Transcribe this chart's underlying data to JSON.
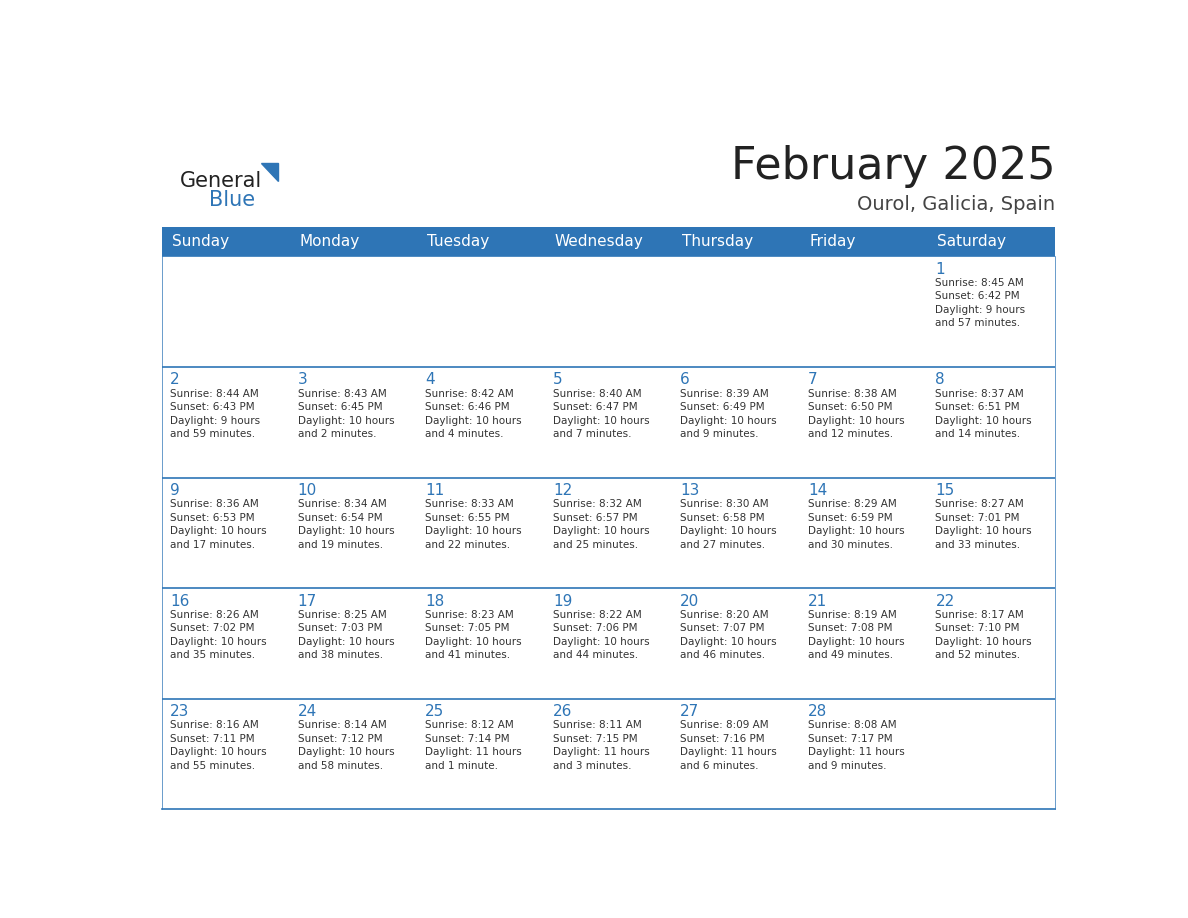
{
  "title": "February 2025",
  "subtitle": "Ourol, Galicia, Spain",
  "header_bg": "#2E75B6",
  "header_text_color": "#FFFFFF",
  "days_of_week": [
    "Sunday",
    "Monday",
    "Tuesday",
    "Wednesday",
    "Thursday",
    "Friday",
    "Saturday"
  ],
  "cell_bg": "#FFFFFF",
  "border_color": "#2E75B6",
  "text_color": "#333333",
  "num_color": "#2E75B6",
  "calendar": [
    [
      {
        "day": "",
        "lines": []
      },
      {
        "day": "",
        "lines": []
      },
      {
        "day": "",
        "lines": []
      },
      {
        "day": "",
        "lines": []
      },
      {
        "day": "",
        "lines": []
      },
      {
        "day": "",
        "lines": []
      },
      {
        "day": "1",
        "lines": [
          "Sunrise: 8:45 AM",
          "Sunset: 6:42 PM",
          "Daylight: 9 hours",
          "and 57 minutes."
        ]
      }
    ],
    [
      {
        "day": "2",
        "lines": [
          "Sunrise: 8:44 AM",
          "Sunset: 6:43 PM",
          "Daylight: 9 hours",
          "and 59 minutes."
        ]
      },
      {
        "day": "3",
        "lines": [
          "Sunrise: 8:43 AM",
          "Sunset: 6:45 PM",
          "Daylight: 10 hours",
          "and 2 minutes."
        ]
      },
      {
        "day": "4",
        "lines": [
          "Sunrise: 8:42 AM",
          "Sunset: 6:46 PM",
          "Daylight: 10 hours",
          "and 4 minutes."
        ]
      },
      {
        "day": "5",
        "lines": [
          "Sunrise: 8:40 AM",
          "Sunset: 6:47 PM",
          "Daylight: 10 hours",
          "and 7 minutes."
        ]
      },
      {
        "day": "6",
        "lines": [
          "Sunrise: 8:39 AM",
          "Sunset: 6:49 PM",
          "Daylight: 10 hours",
          "and 9 minutes."
        ]
      },
      {
        "day": "7",
        "lines": [
          "Sunrise: 8:38 AM",
          "Sunset: 6:50 PM",
          "Daylight: 10 hours",
          "and 12 minutes."
        ]
      },
      {
        "day": "8",
        "lines": [
          "Sunrise: 8:37 AM",
          "Sunset: 6:51 PM",
          "Daylight: 10 hours",
          "and 14 minutes."
        ]
      }
    ],
    [
      {
        "day": "9",
        "lines": [
          "Sunrise: 8:36 AM",
          "Sunset: 6:53 PM",
          "Daylight: 10 hours",
          "and 17 minutes."
        ]
      },
      {
        "day": "10",
        "lines": [
          "Sunrise: 8:34 AM",
          "Sunset: 6:54 PM",
          "Daylight: 10 hours",
          "and 19 minutes."
        ]
      },
      {
        "day": "11",
        "lines": [
          "Sunrise: 8:33 AM",
          "Sunset: 6:55 PM",
          "Daylight: 10 hours",
          "and 22 minutes."
        ]
      },
      {
        "day": "12",
        "lines": [
          "Sunrise: 8:32 AM",
          "Sunset: 6:57 PM",
          "Daylight: 10 hours",
          "and 25 minutes."
        ]
      },
      {
        "day": "13",
        "lines": [
          "Sunrise: 8:30 AM",
          "Sunset: 6:58 PM",
          "Daylight: 10 hours",
          "and 27 minutes."
        ]
      },
      {
        "day": "14",
        "lines": [
          "Sunrise: 8:29 AM",
          "Sunset: 6:59 PM",
          "Daylight: 10 hours",
          "and 30 minutes."
        ]
      },
      {
        "day": "15",
        "lines": [
          "Sunrise: 8:27 AM",
          "Sunset: 7:01 PM",
          "Daylight: 10 hours",
          "and 33 minutes."
        ]
      }
    ],
    [
      {
        "day": "16",
        "lines": [
          "Sunrise: 8:26 AM",
          "Sunset: 7:02 PM",
          "Daylight: 10 hours",
          "and 35 minutes."
        ]
      },
      {
        "day": "17",
        "lines": [
          "Sunrise: 8:25 AM",
          "Sunset: 7:03 PM",
          "Daylight: 10 hours",
          "and 38 minutes."
        ]
      },
      {
        "day": "18",
        "lines": [
          "Sunrise: 8:23 AM",
          "Sunset: 7:05 PM",
          "Daylight: 10 hours",
          "and 41 minutes."
        ]
      },
      {
        "day": "19",
        "lines": [
          "Sunrise: 8:22 AM",
          "Sunset: 7:06 PM",
          "Daylight: 10 hours",
          "and 44 minutes."
        ]
      },
      {
        "day": "20",
        "lines": [
          "Sunrise: 8:20 AM",
          "Sunset: 7:07 PM",
          "Daylight: 10 hours",
          "and 46 minutes."
        ]
      },
      {
        "day": "21",
        "lines": [
          "Sunrise: 8:19 AM",
          "Sunset: 7:08 PM",
          "Daylight: 10 hours",
          "and 49 minutes."
        ]
      },
      {
        "day": "22",
        "lines": [
          "Sunrise: 8:17 AM",
          "Sunset: 7:10 PM",
          "Daylight: 10 hours",
          "and 52 minutes."
        ]
      }
    ],
    [
      {
        "day": "23",
        "lines": [
          "Sunrise: 8:16 AM",
          "Sunset: 7:11 PM",
          "Daylight: 10 hours",
          "and 55 minutes."
        ]
      },
      {
        "day": "24",
        "lines": [
          "Sunrise: 8:14 AM",
          "Sunset: 7:12 PM",
          "Daylight: 10 hours",
          "and 58 minutes."
        ]
      },
      {
        "day": "25",
        "lines": [
          "Sunrise: 8:12 AM",
          "Sunset: 7:14 PM",
          "Daylight: 11 hours",
          "and 1 minute."
        ]
      },
      {
        "day": "26",
        "lines": [
          "Sunrise: 8:11 AM",
          "Sunset: 7:15 PM",
          "Daylight: 11 hours",
          "and 3 minutes."
        ]
      },
      {
        "day": "27",
        "lines": [
          "Sunrise: 8:09 AM",
          "Sunset: 7:16 PM",
          "Daylight: 11 hours",
          "and 6 minutes."
        ]
      },
      {
        "day": "28",
        "lines": [
          "Sunrise: 8:08 AM",
          "Sunset: 7:17 PM",
          "Daylight: 11 hours",
          "and 9 minutes."
        ]
      },
      {
        "day": "",
        "lines": []
      }
    ]
  ]
}
